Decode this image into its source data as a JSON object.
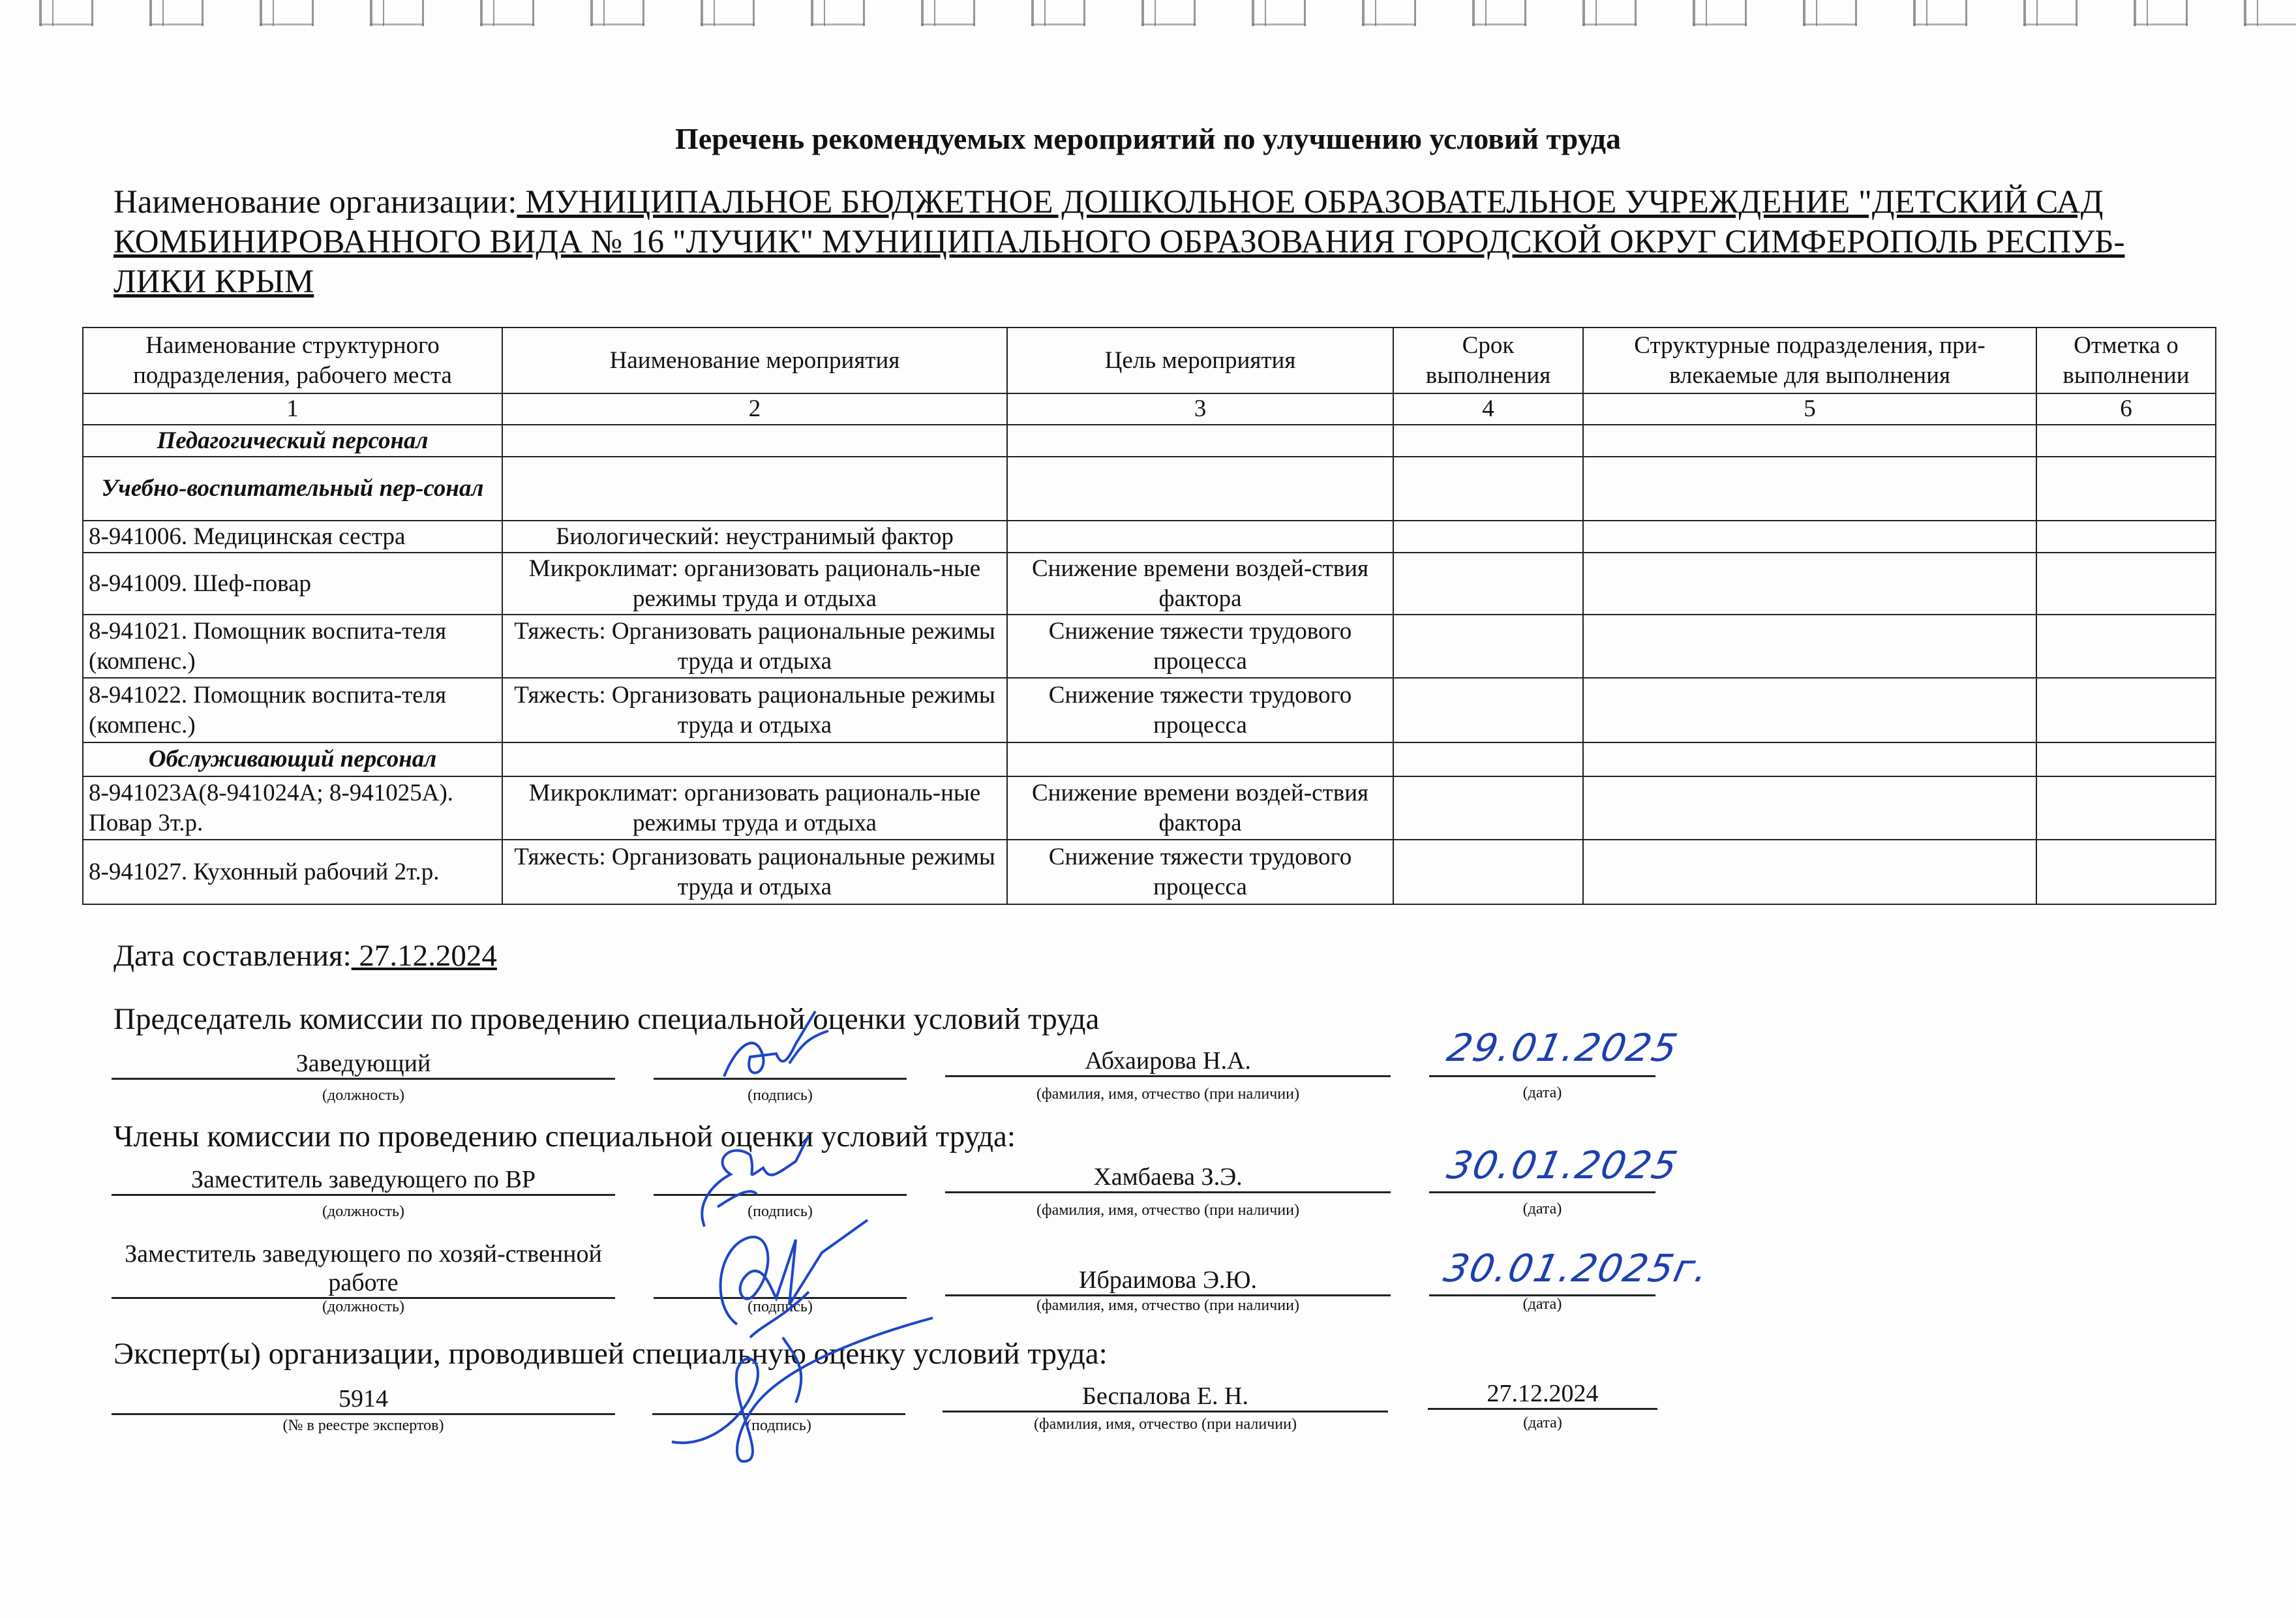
{
  "title": "Перечень рекомендуемых мероприятий по улучшению условий труда",
  "organization": {
    "label": "Наименование организации:",
    "value": " МУНИЦИПАЛЬНОЕ БЮДЖЕТНОЕ ДОШКОЛЬНОЕ ОБРАЗОВАТЕЛЬНОЕ УЧРЕЖДЕНИЕ \"ДЕТСКИЙ САД КОМБИНИРОВАННОГО ВИДА № 16 \"ЛУЧИК\" МУНИЦИПАЛЬНОГО ОБРАЗОВАНИЯ ГОРОДСКОЙ ОКРУГ СИМФЕРОПОЛЬ РЕСПУБ-ЛИКИ КРЫМ "
  },
  "table": {
    "headers": [
      "Наименование структурного подразделения, рабочего места",
      "Наименование мероприятия",
      "Цель мероприятия",
      "Срок выполнения",
      "Структурные подразделения, при-влекаемые для выполнения",
      "Отметка о выполнении"
    ],
    "numbers": [
      "1",
      "2",
      "3",
      "4",
      "5",
      "6"
    ],
    "rows": [
      {
        "group": true,
        "cells": [
          "Педагогический персонал",
          "",
          "",
          "",
          "",
          ""
        ]
      },
      {
        "group": true,
        "cells": [
          "Учебно-воспитательный пер-сонал",
          "",
          "",
          "",
          "",
          ""
        ]
      },
      {
        "group": false,
        "cells": [
          "8-941006. Медицинская сестра",
          "Биологический: неустранимый фактор",
          "",
          "",
          "",
          ""
        ]
      },
      {
        "group": false,
        "cells": [
          "8-941009. Шеф-повар",
          "Микроклимат: организовать рациональ-ные режимы труда и отдыха",
          "Снижение времени воздей-ствия фактора",
          "",
          "",
          ""
        ]
      },
      {
        "group": false,
        "cells": [
          "8-941021. Помощник воспита-теля (компенс.)",
          "Тяжесть: Организовать рациональные режимы труда  и отдыха",
          "Снижение тяжести трудового процесса",
          "",
          "",
          ""
        ]
      },
      {
        "group": false,
        "cells": [
          "8-941022. Помощник воспита-теля (компенс.)",
          "Тяжесть: Организовать рациональные режимы труда  и отдыха",
          "Снижение тяжести трудового процесса",
          "",
          "",
          ""
        ]
      },
      {
        "group": true,
        "cells": [
          "Обслуживающий персонал",
          "",
          "",
          "",
          "",
          ""
        ]
      },
      {
        "group": false,
        "cells": [
          "8-941023А(8-941024А; 8-941025А). Повар 3т.р.",
          "Микроклимат: организовать рациональ-ные режимы труда и отдыха",
          "Снижение времени воздей-ствия фактора",
          "",
          "",
          ""
        ]
      },
      {
        "group": false,
        "cells": [
          "8-941027. Кухонный рабочий 2т.р.",
          "Тяжесть: Организовать рациональные режимы труда  и отдыха",
          "Снижение тяжести трудового процесса",
          "",
          "",
          ""
        ]
      }
    ]
  },
  "date_compiled": {
    "label": "Дата составления:",
    "value": " 27.12.2024 "
  },
  "chairman": {
    "heading": "Председатель комиссии по проведению специальной оценки условий труда",
    "position": "Заведующий",
    "name": "Абхаирова Н.А.",
    "date": "29.01.2025"
  },
  "members": {
    "heading": "Члены комиссии по проведению специальной оценки условий труда:",
    "list": [
      {
        "position": "Заместитель заведующего по ВР",
        "name": "Хамбаева З.Э.",
        "date": "30.01.2025"
      },
      {
        "position": "Заместитель заведующего по хозяй-ственной работе",
        "name": "Ибраимова Э.Ю.",
        "date": "30.01.2025г."
      }
    ]
  },
  "expert": {
    "heading": "Эксперт(ы) организации, проводившей специальную оценку условий труда:",
    "registry_no": "5914",
    "name": "Беспалова Е. Н.",
    "date": "27.12.2024"
  },
  "captions": {
    "position": "(должность)",
    "signature": "(подпись)",
    "fio": "(фамилия, имя, отчество (при наличии)",
    "date": "(дата)",
    "registry": "(№ в реестре экспертов)"
  },
  "colors": {
    "ink": "#111111",
    "pen": "#1e46c8"
  }
}
